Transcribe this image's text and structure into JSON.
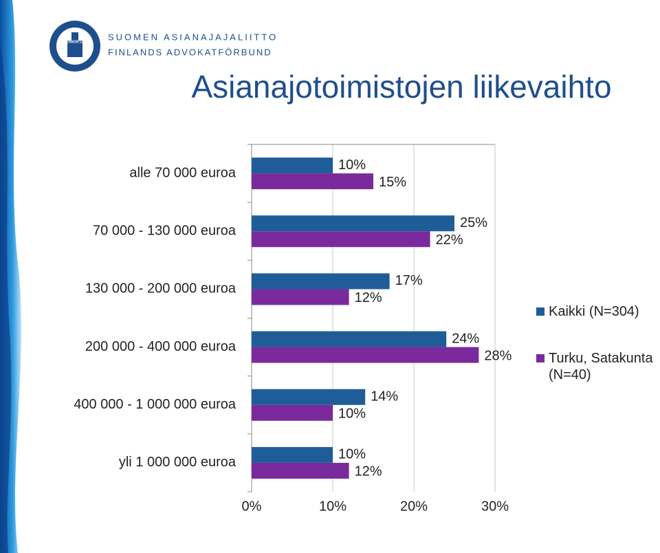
{
  "header": {
    "org_line_1": "SUOMEN ASIANAJAJALIITTO",
    "org_line_2": "FINLANDS ADVOKATFÖRBUND",
    "logo_text": "DEFENSOR LEGIS"
  },
  "chart_data": {
    "type": "hbar",
    "title": "Asianajotoimistojen liikevaihto",
    "categories": [
      "alle 70 000 euroa",
      "70 000 - 130 000 euroa",
      "130 000 - 200 000 euroa",
      "200 000 - 400 000 euroa",
      "400 000 - 1 000 000 euroa",
      "yli 1 000 000 euroa"
    ],
    "series": [
      {
        "name": "Kaikki (N=304)",
        "color": "#1f5d98",
        "values": [
          10,
          25,
          17,
          24,
          14,
          10
        ],
        "value_labels": [
          "10%",
          "25%",
          "17%",
          "24%",
          "14%",
          "10%"
        ]
      },
      {
        "name": "Turku, Satakunta (N=40)",
        "color": "#7a2a9c",
        "values": [
          15,
          22,
          12,
          28,
          10,
          12
        ],
        "value_labels": [
          "15%",
          "22%",
          "12%",
          "28%",
          "10%",
          "12%"
        ]
      }
    ],
    "xlim": [
      0,
      30
    ],
    "xticks": [
      {
        "value": 0,
        "label": "0%"
      },
      {
        "value": 10,
        "label": "10%"
      },
      {
        "value": 20,
        "label": "20%"
      },
      {
        "value": 30,
        "label": "30%"
      }
    ],
    "grid": true,
    "legend_position": "right"
  }
}
